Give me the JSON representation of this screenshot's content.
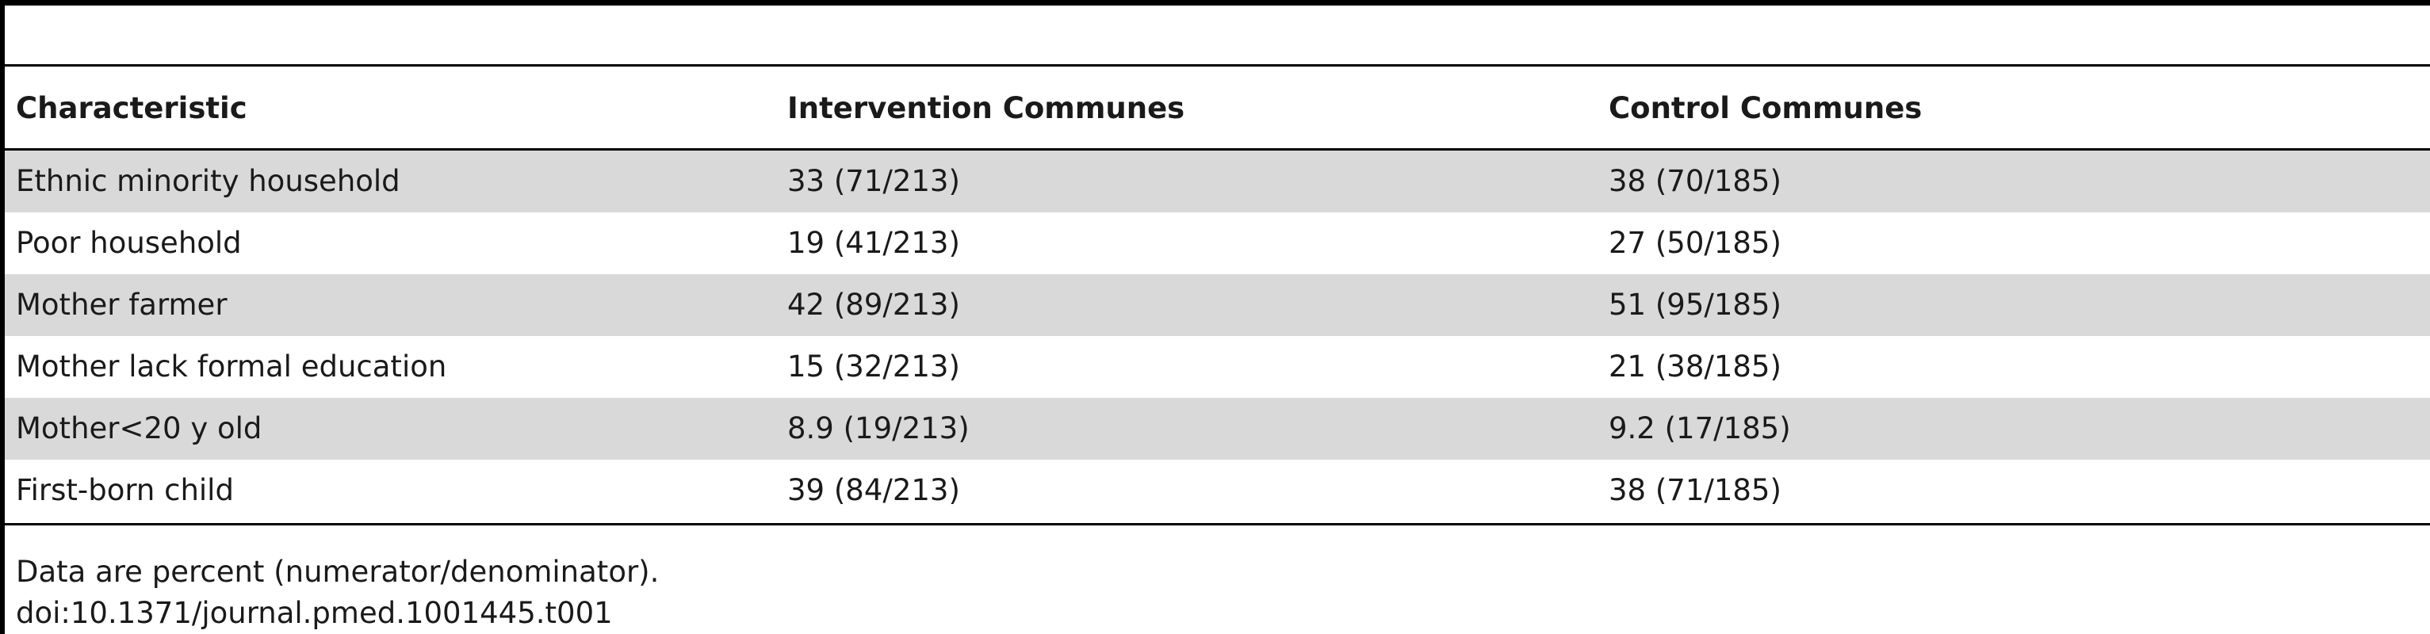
{
  "table": {
    "columns": [
      "Characteristic",
      "Intervention Communes",
      "Control Communes"
    ],
    "rows": [
      [
        "Ethnic minority household",
        "33 (71/213)",
        "38 (70/185)"
      ],
      [
        "Poor household",
        "19 (41/213)",
        "27 (50/185)"
      ],
      [
        "Mother farmer",
        "42 (89/213)",
        "51 (95/185)"
      ],
      [
        "Mother lack formal education",
        "15 (32/213)",
        "21 (38/185)"
      ],
      [
        "Mother<20 y old",
        "8.9 (19/213)",
        "9.2 (17/185)"
      ],
      [
        "First-born child",
        "39 (84/213)",
        "38 (71/185)"
      ]
    ]
  },
  "footnotes": [
    "Data are percent (numerator/denominator).",
    "doi:10.1371/journal.pmed.1001445.t001"
  ]
}
